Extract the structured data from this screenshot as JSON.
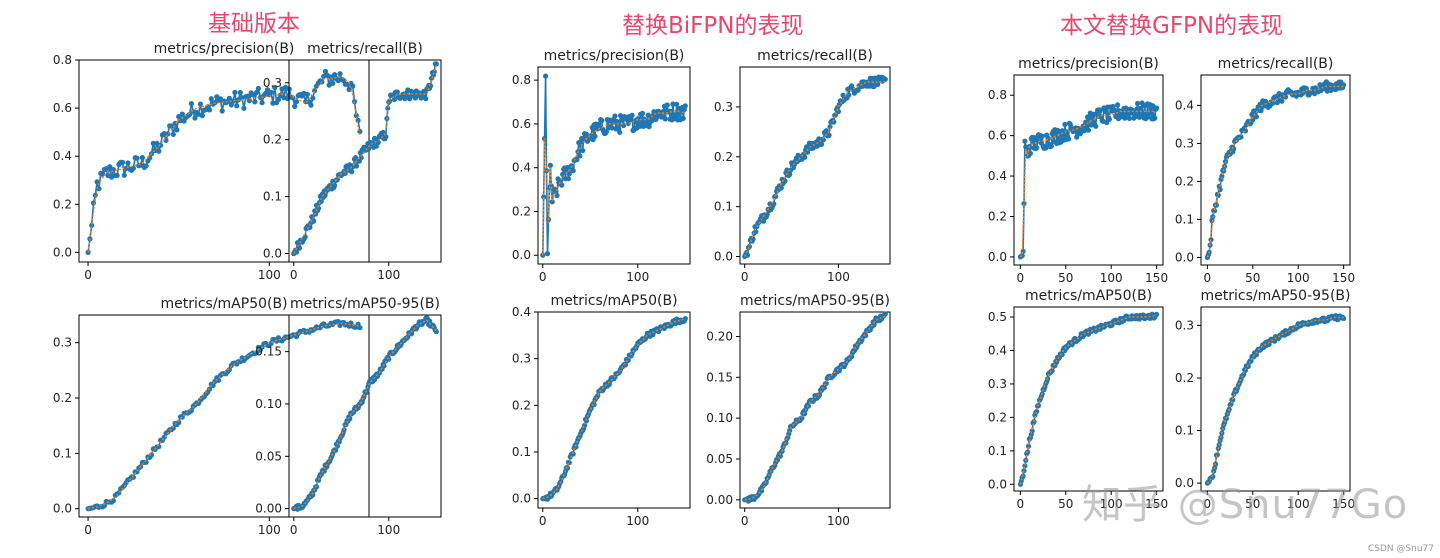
{
  "groups": [
    {
      "title": "基础版本"
    },
    {
      "title": "替换BiFPN的表现"
    },
    {
      "title": "本文替换GFPN的表现"
    }
  ],
  "watermark": "知乎 @Snu77Go",
  "credit": "CSDN @Snu77",
  "colors": {
    "line": "#1f77b4",
    "smooth": "#ff7f0e",
    "accent": "#e8476c"
  },
  "chart_data": [
    {
      "type": "line",
      "group": 0,
      "title": "metrics/precision(B)",
      "xlim": [
        -5,
        155
      ],
      "ylim": [
        -0.04,
        0.8
      ],
      "xticks": [
        0,
        100
      ],
      "yticks": [
        0.0,
        0.2,
        0.4,
        0.6,
        0.8
      ],
      "yfmt": 1,
      "series": [
        {
          "x": [
            0,
            5,
            10,
            20,
            30,
            40,
            50,
            60,
            70,
            80,
            90,
            100,
            110,
            120,
            130,
            140,
            145,
            150
          ],
          "values": [
            0.0,
            0.28,
            0.33,
            0.35,
            0.37,
            0.45,
            0.55,
            0.6,
            0.62,
            0.63,
            0.64,
            0.65,
            0.66,
            0.62,
            0.72,
            0.73,
            0.7,
            0.48
          ]
        }
      ]
    },
    {
      "type": "line",
      "group": 0,
      "title": "metrics/recall(B)",
      "xlim": [
        -5,
        155
      ],
      "ylim": [
        -0.015,
        0.34
      ],
      "xticks": [
        0,
        100
      ],
      "yticks": [
        0.0,
        0.1,
        0.2,
        0.3
      ],
      "yfmt": 1,
      "series": [
        {
          "x": [
            0,
            10,
            20,
            30,
            40,
            50,
            60,
            70,
            80,
            90,
            97,
            100,
            110,
            120,
            130,
            140,
            150
          ],
          "values": [
            0.0,
            0.03,
            0.06,
            0.1,
            0.12,
            0.14,
            0.15,
            0.17,
            0.19,
            0.2,
            0.21,
            0.27,
            0.28,
            0.28,
            0.28,
            0.28,
            0.33
          ]
        }
      ]
    },
    {
      "type": "line",
      "group": 0,
      "title": "metrics/mAP50(B)",
      "xlim": [
        -5,
        155
      ],
      "ylim": [
        -0.015,
        0.35
      ],
      "xticks": [
        0,
        100
      ],
      "yticks": [
        0.0,
        0.1,
        0.2,
        0.3
      ],
      "yfmt": 1,
      "series": [
        {
          "x": [
            0,
            5,
            10,
            15,
            20,
            30,
            40,
            50,
            60,
            70,
            80,
            90,
            100,
            110,
            120,
            130,
            140,
            150
          ],
          "values": [
            0.0,
            0.003,
            0.01,
            0.02,
            0.04,
            0.08,
            0.12,
            0.16,
            0.19,
            0.23,
            0.26,
            0.28,
            0.3,
            0.31,
            0.32,
            0.33,
            0.335,
            0.33
          ]
        }
      ]
    },
    {
      "type": "line",
      "group": 0,
      "title": "metrics/mAP50-95(B)",
      "xlim": [
        -5,
        155
      ],
      "ylim": [
        -0.008,
        0.185
      ],
      "xticks": [
        0,
        100
      ],
      "yticks": [
        0.0,
        0.05,
        0.1,
        0.15
      ],
      "yfmt": 2,
      "series": [
        {
          "x": [
            0,
            5,
            10,
            15,
            20,
            30,
            40,
            50,
            60,
            70,
            80,
            90,
            100,
            110,
            120,
            130,
            140,
            150
          ],
          "values": [
            0.0,
            0.001,
            0.003,
            0.008,
            0.015,
            0.035,
            0.05,
            0.07,
            0.09,
            0.1,
            0.12,
            0.13,
            0.145,
            0.155,
            0.165,
            0.175,
            0.18,
            0.17
          ]
        }
      ]
    },
    {
      "type": "line",
      "group": 1,
      "title": "metrics/precision(B)",
      "xlim": [
        -5,
        155
      ],
      "ylim": [
        -0.04,
        0.86
      ],
      "xticks": [
        0,
        100
      ],
      "yticks": [
        0.0,
        0.2,
        0.4,
        0.6,
        0.8
      ],
      "yfmt": 1,
      "series": [
        {
          "x": [
            0,
            3,
            5,
            8,
            10,
            15,
            20,
            30,
            40,
            50,
            60,
            70,
            80,
            90,
            100,
            110,
            120,
            130,
            140,
            150
          ],
          "values": [
            0.0,
            0.8,
            0.02,
            0.4,
            0.25,
            0.3,
            0.35,
            0.4,
            0.5,
            0.55,
            0.58,
            0.6,
            0.6,
            0.6,
            0.62,
            0.62,
            0.65,
            0.65,
            0.66,
            0.65
          ]
        }
      ]
    },
    {
      "type": "line",
      "group": 1,
      "title": "metrics/recall(B)",
      "xlim": [
        -5,
        155
      ],
      "ylim": [
        -0.015,
        0.38
      ],
      "xticks": [
        0,
        100
      ],
      "yticks": [
        0.0,
        0.1,
        0.2,
        0.3
      ],
      "yfmt": 1,
      "series": [
        {
          "x": [
            0,
            5,
            10,
            20,
            30,
            40,
            50,
            60,
            70,
            80,
            90,
            100,
            110,
            120,
            130,
            140,
            150
          ],
          "values": [
            0.0,
            0.02,
            0.05,
            0.08,
            0.11,
            0.15,
            0.18,
            0.2,
            0.22,
            0.23,
            0.25,
            0.3,
            0.33,
            0.34,
            0.35,
            0.35,
            0.35
          ]
        }
      ]
    },
    {
      "type": "line",
      "group": 1,
      "title": "metrics/mAP50(B)",
      "xlim": [
        -5,
        155
      ],
      "ylim": [
        -0.02,
        0.4
      ],
      "xticks": [
        0,
        100
      ],
      "yticks": [
        0.0,
        0.1,
        0.2,
        0.3,
        0.4
      ],
      "yfmt": 1,
      "series": [
        {
          "x": [
            0,
            5,
            10,
            15,
            20,
            30,
            40,
            50,
            60,
            70,
            80,
            90,
            100,
            110,
            120,
            130,
            140,
            150
          ],
          "values": [
            0.0,
            0.003,
            0.01,
            0.02,
            0.04,
            0.09,
            0.14,
            0.19,
            0.23,
            0.25,
            0.27,
            0.3,
            0.33,
            0.35,
            0.36,
            0.37,
            0.38,
            0.385
          ]
        }
      ]
    },
    {
      "type": "line",
      "group": 1,
      "title": "metrics/mAP50-95(B)",
      "xlim": [
        -5,
        155
      ],
      "ylim": [
        -0.01,
        0.23
      ],
      "xticks": [
        0,
        100
      ],
      "yticks": [
        0.0,
        0.05,
        0.1,
        0.15,
        0.2
      ],
      "yfmt": 2,
      "series": [
        {
          "x": [
            0,
            5,
            10,
            15,
            20,
            30,
            40,
            50,
            60,
            70,
            80,
            90,
            100,
            110,
            120,
            130,
            140,
            150
          ],
          "values": [
            0.0,
            0.001,
            0.003,
            0.008,
            0.015,
            0.04,
            0.06,
            0.09,
            0.1,
            0.12,
            0.13,
            0.15,
            0.16,
            0.17,
            0.19,
            0.205,
            0.22,
            0.225
          ]
        }
      ]
    },
    {
      "type": "line",
      "group": 2,
      "title": "metrics/precision(B)",
      "xlim": [
        -7,
        157
      ],
      "ylim": [
        -0.04,
        0.9
      ],
      "xticks": [
        0,
        50,
        100,
        150
      ],
      "yticks": [
        0.0,
        0.2,
        0.4,
        0.6,
        0.8
      ],
      "yfmt": 1,
      "series": [
        {
          "x": [
            0,
            3,
            5,
            8,
            10,
            20,
            30,
            40,
            50,
            60,
            70,
            80,
            90,
            100,
            110,
            120,
            130,
            140,
            150
          ],
          "values": [
            0.0,
            0.01,
            0.55,
            0.5,
            0.55,
            0.57,
            0.58,
            0.6,
            0.62,
            0.63,
            0.65,
            0.68,
            0.7,
            0.7,
            0.72,
            0.72,
            0.72,
            0.72,
            0.72
          ]
        }
      ]
    },
    {
      "type": "line",
      "group": 2,
      "title": "metrics/recall(B)",
      "xlim": [
        -7,
        157
      ],
      "ylim": [
        -0.02,
        0.48
      ],
      "xticks": [
        0,
        50,
        100,
        150
      ],
      "yticks": [
        0.0,
        0.1,
        0.2,
        0.3,
        0.4
      ],
      "yfmt": 1,
      "series": [
        {
          "x": [
            0,
            3,
            5,
            10,
            15,
            20,
            30,
            40,
            50,
            60,
            70,
            80,
            90,
            100,
            110,
            120,
            130,
            140,
            150
          ],
          "values": [
            0.0,
            0.02,
            0.09,
            0.15,
            0.2,
            0.25,
            0.3,
            0.33,
            0.37,
            0.4,
            0.41,
            0.42,
            0.43,
            0.43,
            0.44,
            0.44,
            0.45,
            0.45,
            0.45
          ]
        }
      ]
    },
    {
      "type": "line",
      "group": 2,
      "title": "metrics/mAP50(B)",
      "xlim": [
        -7,
        157
      ],
      "ylim": [
        -0.02,
        0.53
      ],
      "xticks": [
        0,
        50,
        100,
        150
      ],
      "yticks": [
        0.0,
        0.1,
        0.2,
        0.3,
        0.4,
        0.5
      ],
      "yfmt": 1,
      "series": [
        {
          "x": [
            0,
            3,
            5,
            8,
            10,
            15,
            20,
            30,
            40,
            50,
            60,
            70,
            80,
            90,
            100,
            110,
            120,
            130,
            140,
            150
          ],
          "values": [
            0.0,
            0.03,
            0.06,
            0.1,
            0.13,
            0.19,
            0.24,
            0.32,
            0.37,
            0.41,
            0.43,
            0.45,
            0.46,
            0.47,
            0.48,
            0.49,
            0.5,
            0.5,
            0.5,
            0.505
          ]
        }
      ]
    },
    {
      "type": "line",
      "group": 2,
      "title": "metrics/mAP50-95(B)",
      "xlim": [
        -7,
        157
      ],
      "ylim": [
        -0.015,
        0.335
      ],
      "xticks": [
        0,
        50,
        100,
        150
      ],
      "yticks": [
        0.0,
        0.1,
        0.2,
        0.3
      ],
      "yfmt": 1,
      "series": [
        {
          "x": [
            0,
            3,
            5,
            8,
            10,
            15,
            20,
            30,
            40,
            50,
            60,
            70,
            80,
            90,
            100,
            110,
            120,
            130,
            140,
            150
          ],
          "values": [
            0.0,
            0.005,
            0.01,
            0.03,
            0.05,
            0.09,
            0.12,
            0.17,
            0.21,
            0.24,
            0.26,
            0.27,
            0.28,
            0.29,
            0.3,
            0.305,
            0.31,
            0.31,
            0.315,
            0.315
          ]
        }
      ]
    }
  ]
}
